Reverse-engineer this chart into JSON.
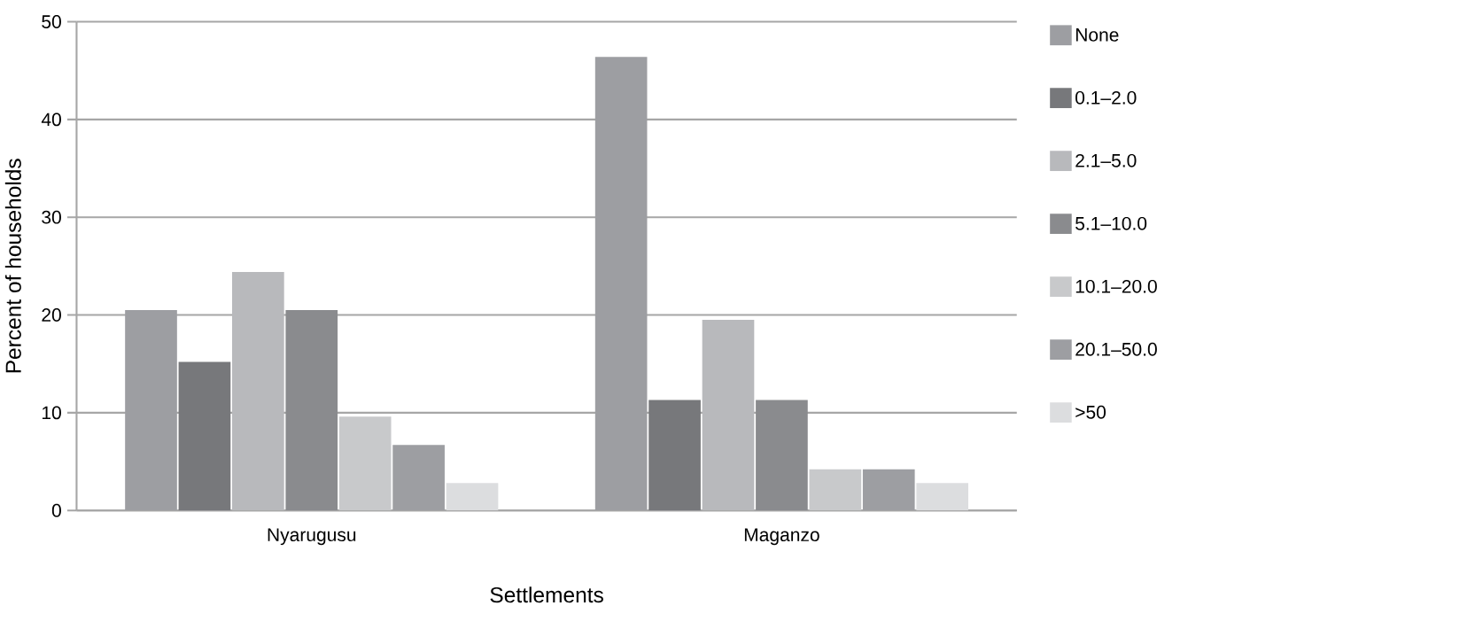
{
  "chart_data": {
    "type": "bar",
    "xlabel": "Settlements",
    "ylabel": "Percent of households",
    "categories": [
      "Nyarugusu",
      "Maganzo"
    ],
    "series": [
      {
        "name": "None",
        "color": "#9d9ea2",
        "values": [
          20.5,
          46.4
        ]
      },
      {
        "name": "0.1–2.0",
        "color": "#77787b",
        "values": [
          15.2,
          11.3
        ]
      },
      {
        "name": "2.1–5.0",
        "color": "#b8b9bc",
        "values": [
          24.4,
          19.5
        ]
      },
      {
        "name": "5.1–10.0",
        "color": "#8a8b8e",
        "values": [
          20.5,
          11.3
        ]
      },
      {
        "name": "10.1–20.0",
        "color": "#c8c9cb",
        "values": [
          9.6,
          4.2
        ]
      },
      {
        "name": "20.1–50.0",
        "color": "#9d9ea2",
        "values": [
          6.7,
          4.2
        ]
      },
      {
        "name": ">50",
        "color": "#dcdddf",
        "values": [
          2.8,
          2.8
        ]
      }
    ],
    "ylim": [
      0,
      50
    ],
    "yticks": [
      0,
      10,
      20,
      30,
      40,
      50
    ],
    "grid": "y",
    "legend": "right"
  }
}
